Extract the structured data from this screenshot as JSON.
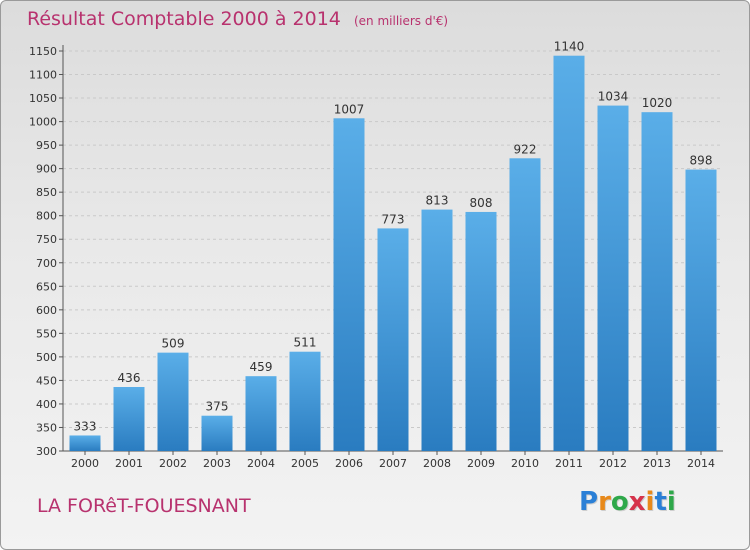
{
  "title": "Résultat Comptable 2000 à 2014",
  "unit_note": "(en milliers d'€)",
  "commune": "LA FORêT-FOUESNANT",
  "logo": {
    "letters": [
      "P",
      "r",
      "o",
      "x",
      "i",
      "t",
      "i"
    ],
    "colors": [
      "#2a7fd6",
      "#e8891a",
      "#2fa84a",
      "#d6334b",
      "#e8891a",
      "#2a7fd6",
      "#2fa84a"
    ]
  },
  "colors": {
    "bar_top": "#5aaee8",
    "bar_bottom": "#2a7cc0",
    "text_accent": "#b8326e"
  },
  "chart_data": {
    "type": "bar",
    "title": "Résultat Comptable 2000 à 2014",
    "categories": [
      "2000",
      "2001",
      "2002",
      "2003",
      "2004",
      "2005",
      "2006",
      "2007",
      "2008",
      "2009",
      "2010",
      "2011",
      "2012",
      "2013",
      "2014"
    ],
    "values": [
      333,
      436,
      509,
      375,
      459,
      511,
      1007,
      773,
      813,
      808,
      922,
      1140,
      1034,
      1020,
      898
    ],
    "ylim": [
      300,
      1150
    ],
    "yticks": [
      300,
      350,
      400,
      450,
      500,
      550,
      600,
      650,
      700,
      750,
      800,
      850,
      900,
      950,
      1000,
      1050,
      1100,
      1150
    ],
    "grid": true,
    "xlabel": "",
    "ylabel": ""
  }
}
